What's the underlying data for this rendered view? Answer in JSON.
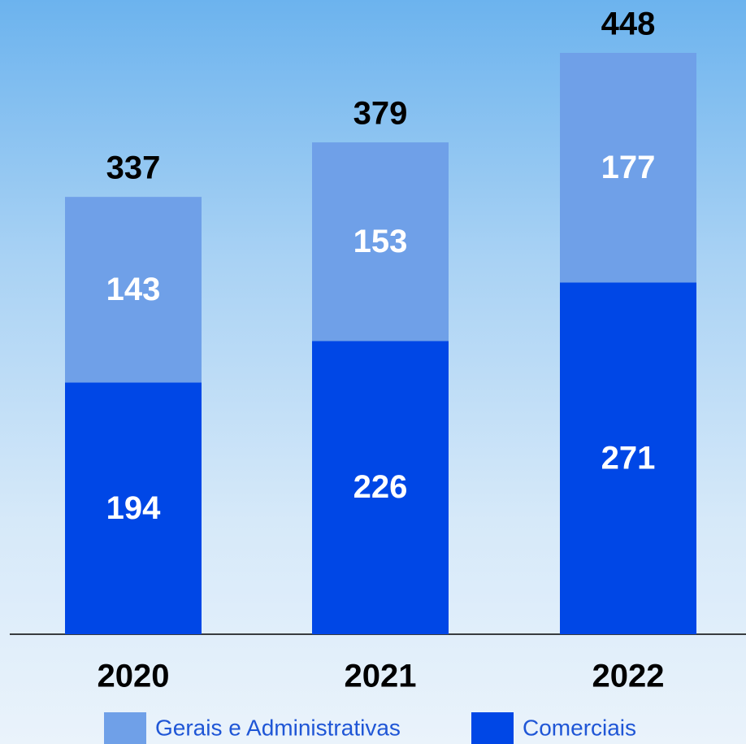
{
  "chart_data": {
    "type": "stacked_bar",
    "categories": [
      "2020",
      "2021",
      "2022"
    ],
    "series": [
      {
        "name": "Gerais e Administrativas",
        "color": "#6fa0e8",
        "values": [
          143,
          153,
          177
        ]
      },
      {
        "name": "Comerciais",
        "color": "#0047e6",
        "values": [
          194,
          226,
          271
        ]
      }
    ],
    "totals": [
      337,
      379,
      448
    ]
  }
}
